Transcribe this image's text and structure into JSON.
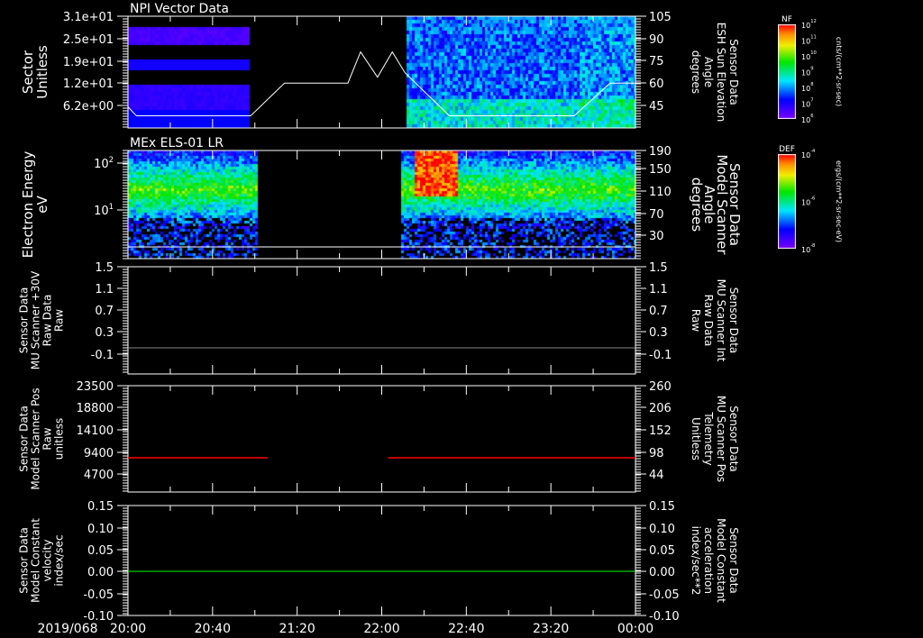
{
  "date_label": "2019/068",
  "time_ticks": [
    "20:00",
    "20:40",
    "21:20",
    "22:00",
    "22:40",
    "23:20",
    "00:00"
  ],
  "colors": {
    "red": "#ff0000",
    "green": "#00ff00",
    "white": "#ffffff",
    "gray": "#888888"
  },
  "chart_data": [
    {
      "type": "heatmap",
      "title": "NPI Vector Data",
      "ylabel": [
        "Sector",
        "Unitless"
      ],
      "yticks": [
        "3.1e+01",
        "2.5e+01",
        "1.9e+01",
        "1.2e+01",
        "6.2e+00"
      ],
      "right_yticks": [
        "105",
        "90",
        "75",
        "60",
        "45"
      ],
      "right_ylabel": [
        "Sensor Data",
        "ESH Sun Elevation",
        "Angle",
        "degrees"
      ],
      "colorbar": {
        "label": "NF",
        "ticks": [
          "10^12",
          "10^11",
          "10^10",
          "10^9",
          "10^8",
          "10^7",
          "10^6"
        ],
        "units": "cnts/(cm**2-sr-sec)"
      },
      "data_gaps_minutes": [
        [
          36,
          131
        ]
      ],
      "overlay_line": {
        "name": "Sun Elevation Angle",
        "x_minutes": [
          0,
          4,
          58,
          74,
          104,
          110,
          118,
          125,
          131,
          152,
          211,
          228,
          240
        ],
        "y_degrees": [
          44,
          38,
          38,
          60,
          60,
          81,
          64,
          81,
          67,
          38,
          38,
          60,
          60
        ]
      }
    },
    {
      "type": "heatmap",
      "title": "MEx ELS-01 LR",
      "ylabel": [
        "Electron Energy",
        "eV"
      ],
      "yticks": [
        "10^2",
        "10^1"
      ],
      "right_yticks": [
        "190",
        "150",
        "110",
        "70",
        "30"
      ],
      "right_ylabel": [
        "Sensor Data",
        "Model Scanner",
        "Angle",
        "degrees"
      ],
      "colorbar": {
        "label": "DEF",
        "ticks": [
          "10^-4",
          "10^-6",
          "10^-8"
        ],
        "units": "ergs/(cm**2-sr-sec-eV)"
      },
      "data_gaps_minutes": [
        [
          61,
          129
        ]
      ],
      "overlay_line": {
        "name": "Scanner Angle",
        "y_degrees": 8
      }
    },
    {
      "type": "line",
      "ylabel": [
        "Sensor Data",
        "MU Scanner +30V",
        "Raw Data",
        "Raw"
      ],
      "yticks": [
        "1.5",
        "1.1",
        "0.7",
        "0.3",
        "-0.1"
      ],
      "ylim": [
        -0.3,
        1.5
      ],
      "right_yticks": [
        "1.5",
        "1.1",
        "0.7",
        "0.3",
        "-0.1"
      ],
      "right_ylabel": [
        "Sensor Data",
        "MU Scanner Int",
        "Raw Data",
        "Raw"
      ],
      "series": [
        {
          "name": "MU Scanner +30V",
          "color": "#888888",
          "x_minutes": [
            0,
            240
          ],
          "y": [
            0.0,
            0.0
          ]
        }
      ]
    },
    {
      "type": "line",
      "ylabel": [
        "Sensor Data",
        "Model Scanner Pos",
        "Raw",
        "unitless"
      ],
      "yticks": [
        "23500",
        "18800",
        "14100",
        "9400",
        "4700"
      ],
      "ylim": [
        -1000,
        23500
      ],
      "right_yticks": [
        "260",
        "206",
        "152",
        "98",
        "44"
      ],
      "right_ylabel": [
        "Sensor Data",
        "MU Scanner Pos",
        "Telemetry",
        "Unitless"
      ],
      "series": [
        {
          "name": "MU Scanner Pos",
          "color": "#ff0000",
          "segments_minutes": [
            [
              0,
              66
            ],
            [
              123,
              240
            ]
          ],
          "y": 8200
        }
      ]
    },
    {
      "type": "line",
      "ylabel": [
        "Sensor Data",
        "Model Constant",
        "velocity",
        "index/sec"
      ],
      "yticks": [
        "0.15",
        "0.10",
        "0.05",
        "0.00",
        "-0.05",
        "-0.10"
      ],
      "ylim": [
        -0.1,
        0.15
      ],
      "right_yticks": [
        "0.15",
        "0.10",
        "0.05",
        "0.00",
        "-0.05",
        "-0.10"
      ],
      "right_ylabel": [
        "Sensor Data",
        "Model Constant",
        "acceleration",
        "index/sec**2"
      ],
      "series": [
        {
          "name": "Model Constant acceleration",
          "color": "#00ff00",
          "x_minutes": [
            0,
            240
          ],
          "y": [
            0,
            0
          ]
        }
      ]
    }
  ]
}
